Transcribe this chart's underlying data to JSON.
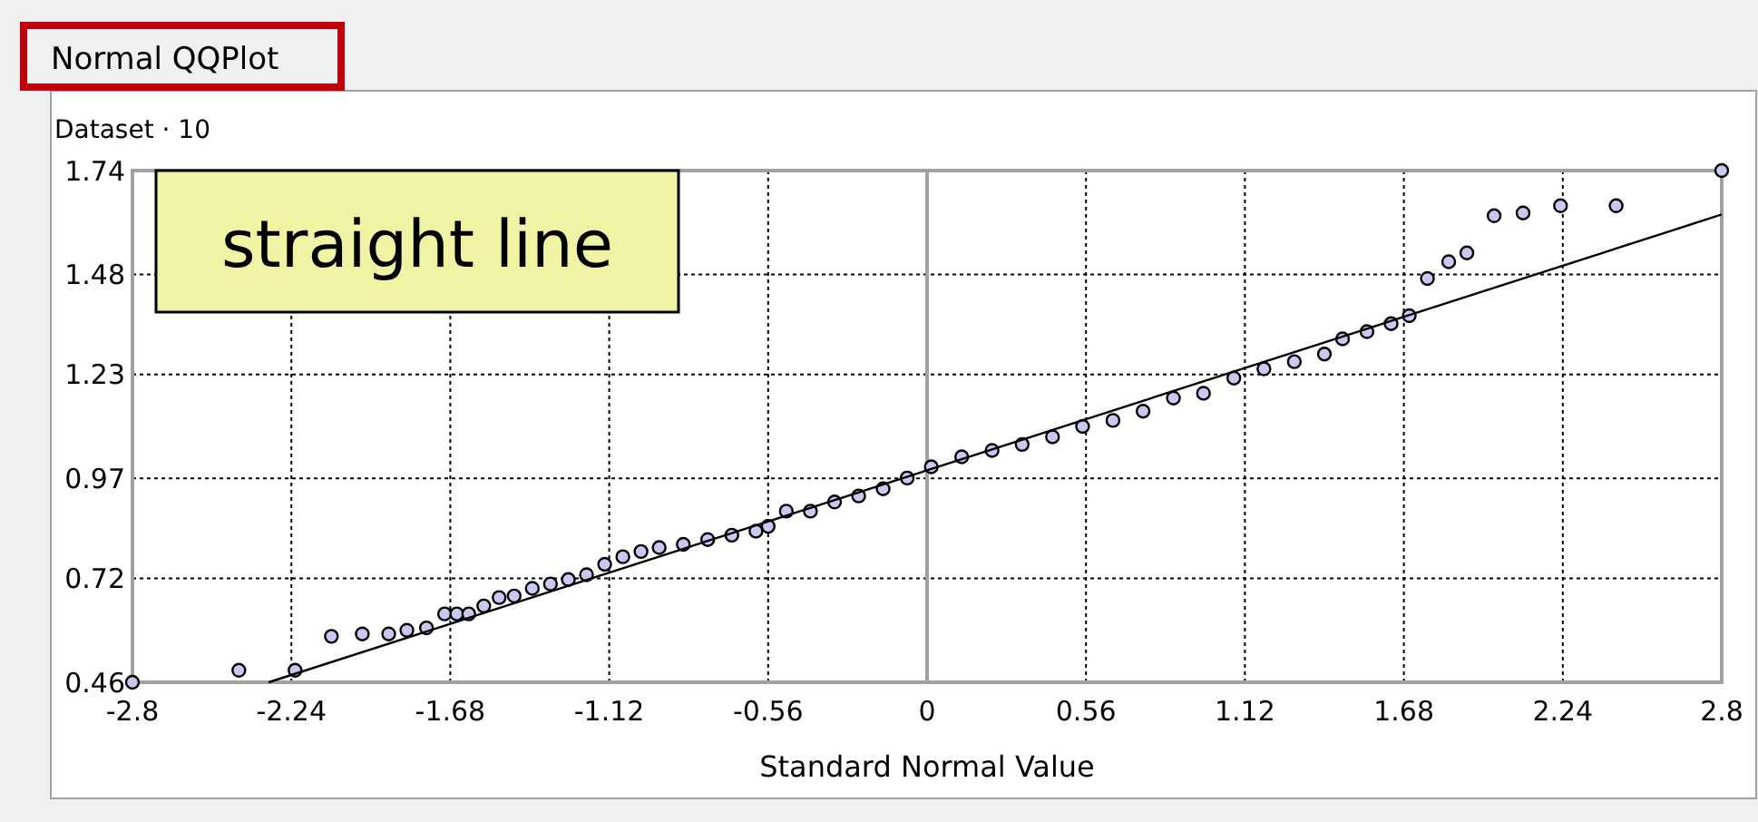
{
  "chart_data": {
    "type": "scatter",
    "title": "Normal QQPlot",
    "subtitle": "Dataset · 10",
    "xlabel": "Standard Normal Value",
    "annotations": [
      "straight line"
    ],
    "xlim": [
      -2.8,
      2.8
    ],
    "ylim": [
      0.46,
      1.74
    ],
    "xticks": [
      -2.8,
      -2.24,
      -1.68,
      -1.12,
      -0.56,
      0,
      0.56,
      1.12,
      1.68,
      2.24,
      2.8
    ],
    "yticks": [
      0.46,
      0.72,
      0.97,
      1.23,
      1.48,
      1.74
    ],
    "grid": true,
    "ref_lines": [
      {
        "axis": "x",
        "value": 0,
        "color": "#a0a0a0"
      }
    ],
    "series": [
      {
        "marker": "circle",
        "color": "#c8c8f0",
        "x": [
          -2.8,
          -2.425,
          -2.227,
          -2.099,
          -1.99,
          -1.897,
          -1.833,
          -1.764,
          -1.7,
          -1.657,
          -1.615,
          -1.562,
          -1.508,
          -1.455,
          -1.391,
          -1.327,
          -1.264,
          -1.2,
          -1.136,
          -1.072,
          -1.008,
          -0.944,
          -0.859,
          -0.773,
          -0.688,
          -0.603,
          -0.56,
          -0.496,
          -0.411,
          -0.326,
          -0.241,
          -0.155,
          -0.07,
          0.015,
          0.122,
          0.229,
          0.335,
          0.442,
          0.548,
          0.655,
          0.761,
          0.868,
          0.974,
          1.081,
          1.187,
          1.294,
          1.4,
          1.464,
          1.55,
          1.635,
          1.699,
          1.763,
          1.838,
          1.902,
          1.998,
          2.1,
          2.232,
          2.428,
          2.8
        ],
        "values": [
          0.46,
          0.49,
          0.49,
          0.575,
          0.581,
          0.581,
          0.59,
          0.596,
          0.631,
          0.631,
          0.631,
          0.651,
          0.672,
          0.676,
          0.695,
          0.706,
          0.717,
          0.729,
          0.755,
          0.774,
          0.787,
          0.797,
          0.805,
          0.817,
          0.828,
          0.838,
          0.85,
          0.888,
          0.888,
          0.911,
          0.926,
          0.944,
          0.971,
          0.999,
          1.024,
          1.04,
          1.055,
          1.074,
          1.1,
          1.115,
          1.138,
          1.171,
          1.183,
          1.221,
          1.244,
          1.262,
          1.281,
          1.319,
          1.337,
          1.357,
          1.377,
          1.47,
          1.512,
          1.534,
          1.627,
          1.634,
          1.652,
          1.652,
          1.74
        ]
      },
      {
        "type": "line",
        "color": "#000000",
        "x": [
          -2.32,
          2.8
        ],
        "values": [
          0.46,
          1.63
        ]
      }
    ]
  }
}
